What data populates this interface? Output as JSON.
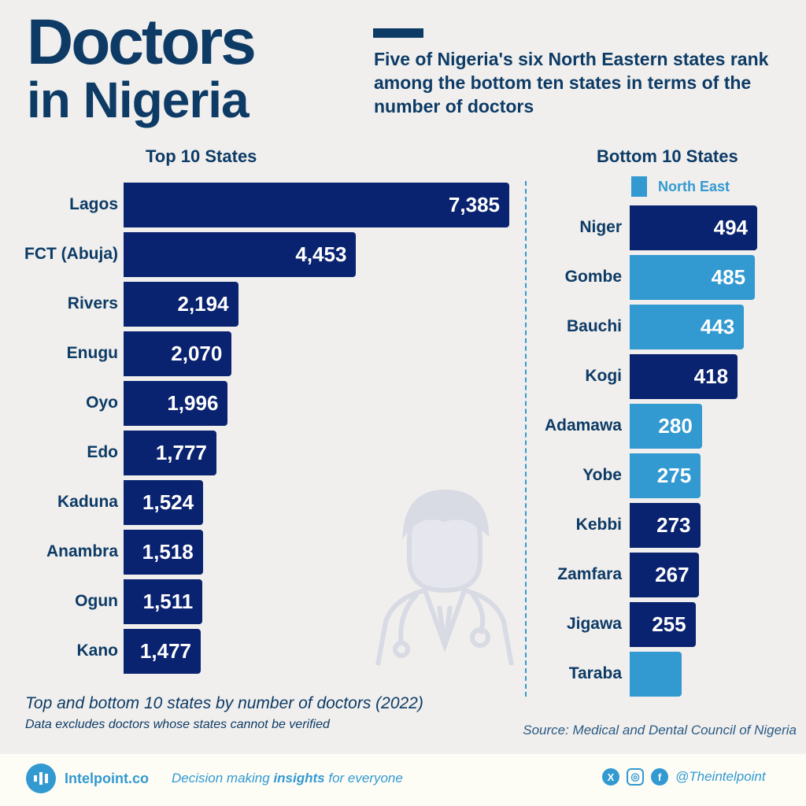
{
  "header": {
    "title_line1": "Doctors",
    "title_line2": "in Nigeria",
    "subtitle": "Five of Nigeria's six North Eastern states rank among the bottom ten states in terms of the number of doctors"
  },
  "chart_data": [
    {
      "type": "bar",
      "orientation": "horizontal",
      "title": "Top 10 States",
      "categories": [
        "Lagos",
        "FCT (Abuja)",
        "Rivers",
        "Enugu",
        "Oyo",
        "Edo",
        "Kaduna",
        "Anambra",
        "Ogun",
        "Kano"
      ],
      "values": [
        7385,
        4453,
        2194,
        2070,
        1996,
        1777,
        1524,
        1518,
        1511,
        1477
      ],
      "labels": [
        "7,385",
        "4,453",
        "2,194",
        "2,070",
        "1,996",
        "1,777",
        "1,524",
        "1,518",
        "1,511",
        "1,477"
      ],
      "color": "#0a2370"
    },
    {
      "type": "bar",
      "orientation": "horizontal",
      "title": "Bottom 10 States",
      "legend": {
        "North East": "#3399d1"
      },
      "categories": [
        "Niger",
        "Gombe",
        "Bauchi",
        "Kogi",
        "Adamawa",
        "Yobe",
        "Kebbi",
        "Zamfara",
        "Jigawa",
        "Taraba"
      ],
      "values": [
        494,
        485,
        443,
        418,
        280,
        275,
        273,
        267,
        255,
        201
      ],
      "labels": [
        "494",
        "485",
        "443",
        "418",
        "280",
        "275",
        "273",
        "267",
        "255",
        ""
      ],
      "north_east": [
        false,
        true,
        true,
        false,
        true,
        true,
        false,
        false,
        false,
        true
      ],
      "color": "#0a2370",
      "north_east_color": "#3399d1"
    }
  ],
  "notes": {
    "caption": "Top and bottom 10 states by number of doctors (2022)",
    "exclusion": "Data excludes doctors whose states cannot be verified",
    "source": "Source: Medical and Dental Council of Nigeria"
  },
  "footer": {
    "brand": "Intelpoint.co",
    "tag_pre": "Decision making ",
    "tag_bold": "insights",
    "tag_post": " for everyone",
    "handle": "@Theintelpoint",
    "icons": [
      "x-icon",
      "instagram-icon",
      "facebook-icon"
    ]
  }
}
